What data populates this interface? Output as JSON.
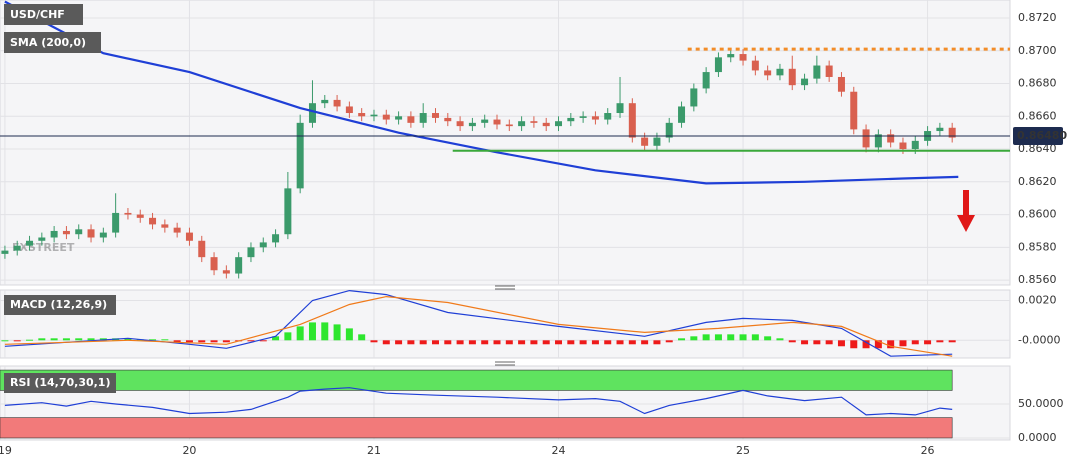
{
  "chart_data": [
    {
      "type": "candlestick",
      "title": "USD/CHF",
      "watermark": "FXSTREET",
      "xlim": [
        -0.4,
        81.7
      ],
      "ylim": [
        0.8557,
        0.8731
      ],
      "yticks": [
        {
          "value": 0.856,
          "label": "0.8560"
        },
        {
          "value": 0.858,
          "label": "0.8580"
        },
        {
          "value": 0.86,
          "label": "0.8600"
        },
        {
          "value": 0.862,
          "label": "0.8620"
        },
        {
          "value": 0.864,
          "label": "0.8640"
        },
        {
          "value": 0.866,
          "label": "0.8660"
        },
        {
          "value": 0.868,
          "label": "0.8680"
        },
        {
          "value": 0.87,
          "label": "0.8700"
        },
        {
          "value": 0.872,
          "label": "0.8720"
        }
      ],
      "grid": true,
      "up_color": "#3b9a6b",
      "down_color": "#d9604f",
      "open": [
        0.8576,
        0.8578,
        0.8581,
        0.8584,
        0.8586,
        0.859,
        0.8588,
        0.8591,
        0.8586,
        0.8589,
        0.8601,
        0.86,
        0.8598,
        0.8594,
        0.8592,
        0.8589,
        0.8584,
        0.8574,
        0.8566,
        0.8564,
        0.8574,
        0.858,
        0.8583,
        0.8588,
        0.8616,
        0.8656,
        0.8668,
        0.867,
        0.8666,
        0.8662,
        0.866,
        0.8661,
        0.8658,
        0.866,
        0.8656,
        0.8662,
        0.8659,
        0.8657,
        0.8654,
        0.8656,
        0.8658,
        0.8655,
        0.8654,
        0.8657,
        0.8656,
        0.8654,
        0.8657,
        0.8659,
        0.866,
        0.8658,
        0.8662,
        0.8668,
        0.8647,
        0.8642,
        0.8647,
        0.8656,
        0.8666,
        0.8677,
        0.8687,
        0.8696,
        0.8698,
        0.8694,
        0.8688,
        0.8685,
        0.8689,
        0.8679,
        0.8683,
        0.8691,
        0.8684,
        0.8675,
        0.8652,
        0.8641,
        0.8649,
        0.8644,
        0.864,
        0.8645,
        0.8651,
        0.8653
      ],
      "high": [
        0.8581,
        0.8584,
        0.8587,
        0.8589,
        0.8593,
        0.8593,
        0.8594,
        0.8594,
        0.8592,
        0.8613,
        0.8604,
        0.8603,
        0.8601,
        0.8597,
        0.8595,
        0.8592,
        0.8587,
        0.8577,
        0.8569,
        0.8577,
        0.8583,
        0.8586,
        0.8591,
        0.8626,
        0.8661,
        0.8682,
        0.8673,
        0.8673,
        0.8669,
        0.8665,
        0.8664,
        0.8664,
        0.8663,
        0.8663,
        0.8668,
        0.8665,
        0.8662,
        0.866,
        0.8659,
        0.8661,
        0.8661,
        0.8658,
        0.866,
        0.866,
        0.8659,
        0.866,
        0.8662,
        0.8663,
        0.8663,
        0.8665,
        0.8684,
        0.8671,
        0.865,
        0.865,
        0.8659,
        0.8669,
        0.868,
        0.869,
        0.8699,
        0.8701,
        0.8701,
        0.8697,
        0.8691,
        0.8692,
        0.8697,
        0.8686,
        0.8697,
        0.8694,
        0.8687,
        0.8678,
        0.8655,
        0.8652,
        0.8652,
        0.8647,
        0.8648,
        0.8654,
        0.8656,
        0.8656
      ],
      "low": [
        0.8573,
        0.8575,
        0.8578,
        0.8581,
        0.8583,
        0.8585,
        0.8585,
        0.8583,
        0.8583,
        0.8586,
        0.8597,
        0.8595,
        0.8591,
        0.8589,
        0.8586,
        0.8581,
        0.8571,
        0.8563,
        0.8561,
        0.8561,
        0.8571,
        0.8577,
        0.858,
        0.8585,
        0.8613,
        0.8653,
        0.8665,
        0.8663,
        0.8659,
        0.8657,
        0.8657,
        0.8655,
        0.8655,
        0.8653,
        0.8653,
        0.8656,
        0.8654,
        0.8651,
        0.8651,
        0.8653,
        0.8652,
        0.8651,
        0.8651,
        0.8653,
        0.8651,
        0.8651,
        0.8654,
        0.8656,
        0.8655,
        0.8655,
        0.8659,
        0.8644,
        0.8639,
        0.8639,
        0.8644,
        0.8653,
        0.8663,
        0.8674,
        0.8684,
        0.8693,
        0.8691,
        0.8685,
        0.8682,
        0.8682,
        0.8676,
        0.8676,
        0.868,
        0.8681,
        0.8672,
        0.8649,
        0.8638,
        0.8638,
        0.8641,
        0.8637,
        0.8637,
        0.8642,
        0.8648,
        0.8644
      ],
      "close": [
        0.8578,
        0.8581,
        0.8584,
        0.8586,
        0.859,
        0.8588,
        0.8591,
        0.8586,
        0.8589,
        0.8601,
        0.86,
        0.8598,
        0.8594,
        0.8592,
        0.8589,
        0.8584,
        0.8574,
        0.8566,
        0.8564,
        0.8574,
        0.858,
        0.8583,
        0.8588,
        0.8616,
        0.8656,
        0.8668,
        0.867,
        0.8666,
        0.8662,
        0.866,
        0.8661,
        0.8658,
        0.866,
        0.8656,
        0.8662,
        0.8659,
        0.8657,
        0.8654,
        0.8656,
        0.8658,
        0.8655,
        0.8654,
        0.8657,
        0.8656,
        0.8654,
        0.8657,
        0.8659,
        0.866,
        0.8658,
        0.8662,
        0.8668,
        0.8647,
        0.8642,
        0.8647,
        0.8656,
        0.8666,
        0.8677,
        0.8687,
        0.8696,
        0.8698,
        0.8694,
        0.8688,
        0.8685,
        0.8689,
        0.8679,
        0.8683,
        0.8691,
        0.8684,
        0.8675,
        0.8652,
        0.8641,
        0.8649,
        0.8644,
        0.864,
        0.8645,
        0.8651,
        0.8653,
        0.8647
      ],
      "overlays": [
        {
          "name": "SMA (200,0)",
          "color": "#1f3fd6",
          "x": [
            0,
            8,
            15,
            24,
            32,
            40,
            48,
            57,
            65,
            73,
            77.5
          ],
          "values": [
            0.873,
            0.86985,
            0.8687,
            0.8665,
            0.865,
            0.8638,
            0.8627,
            0.8619,
            0.862,
            0.8622,
            0.8623
          ]
        }
      ],
      "levels": [
        {
          "value": 0.8701,
          "x0": 55.5,
          "color": "#f28c28",
          "dash": true
        },
        {
          "value": 0.8639,
          "x0": 36.4,
          "color": "#3aa83a",
          "dash": false
        }
      ],
      "last_price": {
        "value": 0.8648,
        "label": "0.86480",
        "color": "#1d2b4f"
      }
    },
    {
      "type": "macd",
      "title": "MACD (12,26,9)",
      "xlim": [
        -0.4,
        81.7
      ],
      "ylim": [
        -0.00089,
        0.00253
      ],
      "yticks": [
        {
          "value": 0,
          "label": "-0.0000"
        },
        {
          "value": 0.002,
          "label": "0.0020"
        }
      ],
      "up_color": "#2ee62e",
      "down_color": "#ee1a1a",
      "histogram": [
        0,
        -3e-05,
        3e-05,
        0.0001,
        0.0001,
        0.0001,
        0.0001,
        0.0001,
        0.0001,
        0.0001,
        0.0001,
        5e-05,
        5e-05,
        5e-05,
        -0.0001,
        -0.0001,
        -0.0001,
        -0.0001,
        -0.0001,
        -5e-05,
        -5e-05,
        -5e-05,
        0.0002,
        0.0004,
        0.0007,
        0.0009,
        0.0009,
        0.0008,
        0.0006,
        0.0003,
        -0.0001,
        -0.0002,
        -0.0002,
        -0.0002,
        -0.0002,
        -0.0002,
        -0.0002,
        -0.0002,
        -0.0002,
        -0.0002,
        -0.0002,
        -0.0002,
        -0.0002,
        -0.0002,
        -0.0002,
        -0.0002,
        -0.0002,
        -0.0002,
        -0.0002,
        -0.0002,
        -0.0002,
        -0.0002,
        -0.0002,
        -0.0002,
        -0.0001,
        0.0001,
        0.0002,
        0.0003,
        0.0003,
        0.0003,
        0.0003,
        0.0003,
        0.0002,
        0.0001,
        -0.0001,
        -0.0002,
        -0.0002,
        -0.0002,
        -0.0003,
        -0.0004,
        -0.0004,
        -0.0004,
        -0.0004,
        -0.0003,
        -0.0002,
        -0.0002,
        -0.0001,
        -0.0001
      ],
      "series": [
        {
          "color": "#1f3fd6",
          "x": [
            0,
            5,
            10,
            15,
            18,
            22,
            25,
            28,
            31,
            36,
            45,
            52,
            57,
            60,
            64,
            68,
            72,
            77
          ],
          "values": [
            -0.0003,
            -0.0001,
            0.0001,
            -0.0002,
            -0.0004,
            0.0002,
            0.002,
            0.0025,
            0.0023,
            0.0014,
            0.0007,
            0.0002,
            0.0009,
            0.0011,
            0.001,
            0.0006,
            -0.0008,
            -0.0007
          ]
        },
        {
          "color": "#f07a1a",
          "x": [
            0,
            10,
            18,
            24,
            28,
            31,
            36,
            45,
            52,
            58,
            64,
            68,
            72,
            77
          ],
          "values": [
            -0.0002,
            0,
            -0.0002,
            0.0008,
            0.0018,
            0.0022,
            0.0019,
            0.0008,
            0.0004,
            0.0006,
            0.0009,
            0.0007,
            -0.0003,
            -0.0008
          ]
        }
      ]
    },
    {
      "type": "line",
      "title": "RSI (14,70,30,1)",
      "xlim": [
        -0.4,
        81.7
      ],
      "ylim": [
        -3,
        106
      ],
      "yticks": [
        {
          "value": 0,
          "label": "0.0000"
        },
        {
          "value": 50,
          "label": "50.0000"
        }
      ],
      "xticks": [
        {
          "value": 0,
          "label": "19"
        },
        {
          "value": 15,
          "label": "20"
        },
        {
          "value": 30,
          "label": "21"
        },
        {
          "value": 45,
          "label": "24"
        },
        {
          "value": 60,
          "label": "25"
        },
        {
          "value": 75,
          "label": "26"
        }
      ],
      "bands": [
        {
          "from": 70,
          "to": 100,
          "color": "#5fe35f"
        },
        {
          "from": 0,
          "to": 30,
          "color": "#f27a7a"
        }
      ],
      "series": [
        {
          "color": "#1f3fd6",
          "x": [
            0,
            3,
            5,
            7,
            9,
            12,
            15,
            18,
            20,
            23,
            24,
            26,
            28,
            31,
            35,
            40,
            45,
            48,
            50,
            52,
            54,
            57,
            60,
            62,
            65,
            68,
            70,
            72,
            74,
            76,
            77
          ],
          "values": [
            48,
            52,
            47,
            54,
            50,
            45,
            36,
            38,
            42,
            60,
            69,
            72,
            74,
            66,
            63,
            60,
            56,
            58,
            54,
            36,
            48,
            58,
            70,
            62,
            55,
            60,
            34,
            36,
            34,
            44,
            42
          ]
        }
      ]
    }
  ]
}
